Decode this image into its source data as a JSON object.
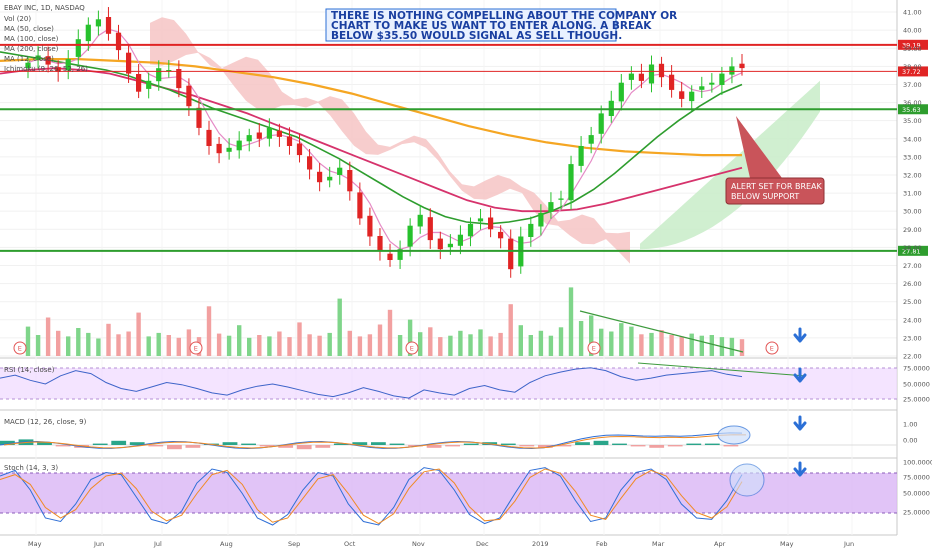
{
  "chart_data": {
    "type": "candlestick",
    "symbol_label": "EBAY INC, 1D, NASDAQ",
    "indicator_labels": [
      "Vol (20)",
      "MA (50, close)",
      "MA (100, close)",
      "MA (200, close)",
      "MA (12, close)",
      "Ichimoku (9, 26, 52, 26)"
    ],
    "x_ticks": [
      "May",
      "Jun",
      "Jul",
      "Aug",
      "Sep",
      "Oct",
      "Nov",
      "Dec",
      "2019",
      "Feb",
      "Mar",
      "Apr",
      "May",
      "Jun"
    ],
    "price_ticks": [
      "41.00",
      "40.00",
      "39.00",
      "38.00",
      "37.00",
      "36.00",
      "35.00",
      "34.00",
      "33.00",
      "32.00",
      "31.00",
      "30.00",
      "29.00",
      "28.00",
      "27.00",
      "26.00",
      "25.00",
      "24.00",
      "23.00",
      "22.00"
    ],
    "ylim": [
      22,
      41.5
    ],
    "levels": [
      {
        "value": 39.19,
        "label": "39.19",
        "color": "#e02424"
      },
      {
        "value": 37.72,
        "label": "37.72",
        "color": "#e02424"
      },
      {
        "value": 35.63,
        "label": "35.63",
        "color": "#2e9d2e"
      },
      {
        "value": 27.81,
        "label": "27.81",
        "color": "#2e9d2e"
      }
    ],
    "closes": [
      38.2,
      38.6,
      38.1,
      37.7,
      38.4,
      39.5,
      40.3,
      40.6,
      39.8,
      38.9,
      37.6,
      36.6,
      37.2,
      37.9,
      37.8,
      36.8,
      35.8,
      34.6,
      33.6,
      33.2,
      33.5,
      33.9,
      34.2,
      34.0,
      34.6,
      34.1,
      33.6,
      33.1,
      32.3,
      31.6,
      31.9,
      32.4,
      31.1,
      29.6,
      28.6,
      27.8,
      27.3,
      27.9,
      29.2,
      29.8,
      28.4,
      27.9,
      28.2,
      28.7,
      29.3,
      29.6,
      29.0,
      28.5,
      26.8,
      28.6,
      29.3,
      29.9,
      30.5,
      30.7,
      32.6,
      33.6,
      34.2,
      35.4,
      36.1,
      37.1,
      37.6,
      37.2,
      38.1,
      37.4,
      36.7,
      36.2,
      36.6,
      36.9,
      37.1,
      37.6,
      38.0,
      37.9
    ],
    "ma50": [
      38.8,
      38.6,
      38.4,
      38.2,
      38.0,
      37.8,
      37.5,
      37.1,
      36.7,
      36.2,
      35.7,
      35.3,
      34.9,
      34.5,
      34.1,
      33.5,
      32.9,
      32.2,
      31.5,
      30.8,
      30.2,
      29.7,
      29.4,
      29.3,
      29.4,
      29.6,
      30.0,
      30.5,
      31.2,
      32.1,
      33.1,
      34.1,
      35.0,
      35.8,
      36.5,
      37.0
    ],
    "ma100": [
      37.6,
      37.8,
      37.9,
      37.8,
      37.6,
      37.2,
      36.8,
      36.4,
      35.9,
      35.4,
      34.8,
      34.2,
      33.6,
      33.0,
      32.4,
      31.8,
      31.2,
      30.6,
      30.2,
      30.0,
      30.0,
      30.1,
      30.4,
      30.8,
      31.2,
      31.6,
      32.0,
      32.4
    ],
    "ma200": [
      38.3,
      38.4,
      38.4,
      38.3,
      38.2,
      38.0,
      37.7,
      37.4,
      37.0,
      36.5,
      35.9,
      35.3,
      34.7,
      34.2,
      33.8,
      33.5,
      33.3,
      33.2,
      33.1,
      33.1
    ],
    "volume": [
      0.42,
      0.3,
      0.55,
      0.36,
      0.28,
      0.4,
      0.33,
      0.25,
      0.46,
      0.31,
      0.35,
      0.62,
      0.28,
      0.33,
      0.3,
      0.26,
      0.38,
      0.27,
      0.71,
      0.32,
      0.29,
      0.44,
      0.26,
      0.3,
      0.28,
      0.35,
      0.27,
      0.48,
      0.31,
      0.29,
      0.33,
      0.82,
      0.36,
      0.28,
      0.31,
      0.45,
      0.66,
      0.3,
      0.52,
      0.34,
      0.41,
      0.27,
      0.29,
      0.36,
      0.31,
      0.38,
      0.28,
      0.33,
      0.74,
      0.44,
      0.3,
      0.36,
      0.29,
      0.41,
      0.98,
      0.5,
      0.58,
      0.39,
      0.35,
      0.47,
      0.42,
      0.31,
      0.33,
      0.37,
      0.3,
      0.28,
      0.32,
      0.29,
      0.3,
      0.27,
      0.26,
      0.24
    ],
    "rsi_ticks": [
      "75.0000",
      "50.0000",
      "25.0000"
    ],
    "macd_ticks": [
      "1.00",
      "0.00"
    ],
    "stoch_ticks": [
      "100.0000",
      "75.0000",
      "50.0000",
      "25.0000"
    ],
    "rsi_line": [
      58,
      62,
      55,
      50,
      61,
      68,
      64,
      52,
      44,
      40,
      46,
      52,
      49,
      44,
      38,
      35,
      42,
      47,
      50,
      46,
      41,
      36,
      33,
      38,
      45,
      40,
      34,
      31,
      42,
      38,
      35,
      44,
      48,
      42,
      39,
      52,
      61,
      66,
      70,
      72,
      68,
      60,
      55,
      58,
      62,
      64,
      66,
      68,
      63,
      60
    ],
    "stoch_k": [
      80,
      88,
      60,
      20,
      15,
      40,
      75,
      85,
      82,
      50,
      18,
      12,
      30,
      70,
      90,
      85,
      55,
      20,
      10,
      25,
      60,
      85,
      80,
      40,
      15,
      10,
      35,
      75,
      92,
      88,
      60,
      25,
      12,
      20,
      55,
      88,
      92,
      80,
      45,
      15,
      20,
      60,
      85,
      90,
      75,
      40,
      20,
      18,
      45,
      82
    ],
    "stoch_d": [
      75,
      82,
      68,
      35,
      20,
      32,
      62,
      80,
      84,
      62,
      30,
      16,
      24,
      55,
      82,
      88,
      68,
      32,
      14,
      20,
      48,
      76,
      82,
      55,
      24,
      12,
      26,
      62,
      86,
      90,
      70,
      36,
      16,
      18,
      44,
      78,
      90,
      84,
      58,
      24,
      18,
      48,
      76,
      88,
      80,
      52,
      28,
      20,
      36,
      72
    ],
    "macd_hist": [
      0.3,
      0.4,
      0.2,
      -0.1,
      -0.2,
      0.1,
      0.3,
      0.2,
      -0.1,
      -0.3,
      -0.2,
      0.1,
      0.2,
      0.1,
      -0.1,
      -0.2,
      -0.3,
      -0.2,
      0.1,
      0.2,
      0.2,
      0.1,
      -0.1,
      -0.2,
      -0.1,
      0.1,
      0.2,
      0.1,
      -0.1,
      -0.2,
      -0.1,
      0.2,
      0.3,
      0.1,
      -0.1,
      -0.2,
      -0.1,
      0.1,
      0.1,
      -0.1
    ],
    "annotations": {
      "top_note": "THERE IS NOTHING COMPELLING ABOUT THE COMPANY OR CHART TO MAKE US WANT TO ENTER ALONG. A BREAK BELOW $35.50 WOULD SIGNAL AS SELL THOUGH.",
      "top_note_lines": [
        "THERE IS NOTHING COMPELLING ABOUT THE COMPANY OR",
        "CHART TO MAKE US WANT TO ENTER ALONG. A BREAK",
        "BELOW $35.50 WOULD SIGNAL AS SELL THOUGH."
      ],
      "alert_lines": [
        "ALERT SET FOR BREAK",
        "BELOW SUPPORT"
      ],
      "earnings_marker": "E"
    },
    "panes": {
      "rsi": "RSI (14, close)",
      "macd": "MACD (12, 26, close, 9)",
      "stoch": "Stoch (14, 3, 3)"
    },
    "colors": {
      "up": "#27c12d",
      "down": "#e02424",
      "ma50": "#2e9d2e",
      "ma100": "#d6336c",
      "ma200": "#f5a623",
      "ma12": "#e58ac6",
      "cloud_bull": "#c8ecc8",
      "cloud_bear": "#f6c4c4",
      "rsi_band": "#efd9ff",
      "stoch_band": "#d9b5f5",
      "arrow": "#2b6fd6",
      "note_bg": "#e9f1ff",
      "alert_bg": "#c9545a"
    }
  }
}
